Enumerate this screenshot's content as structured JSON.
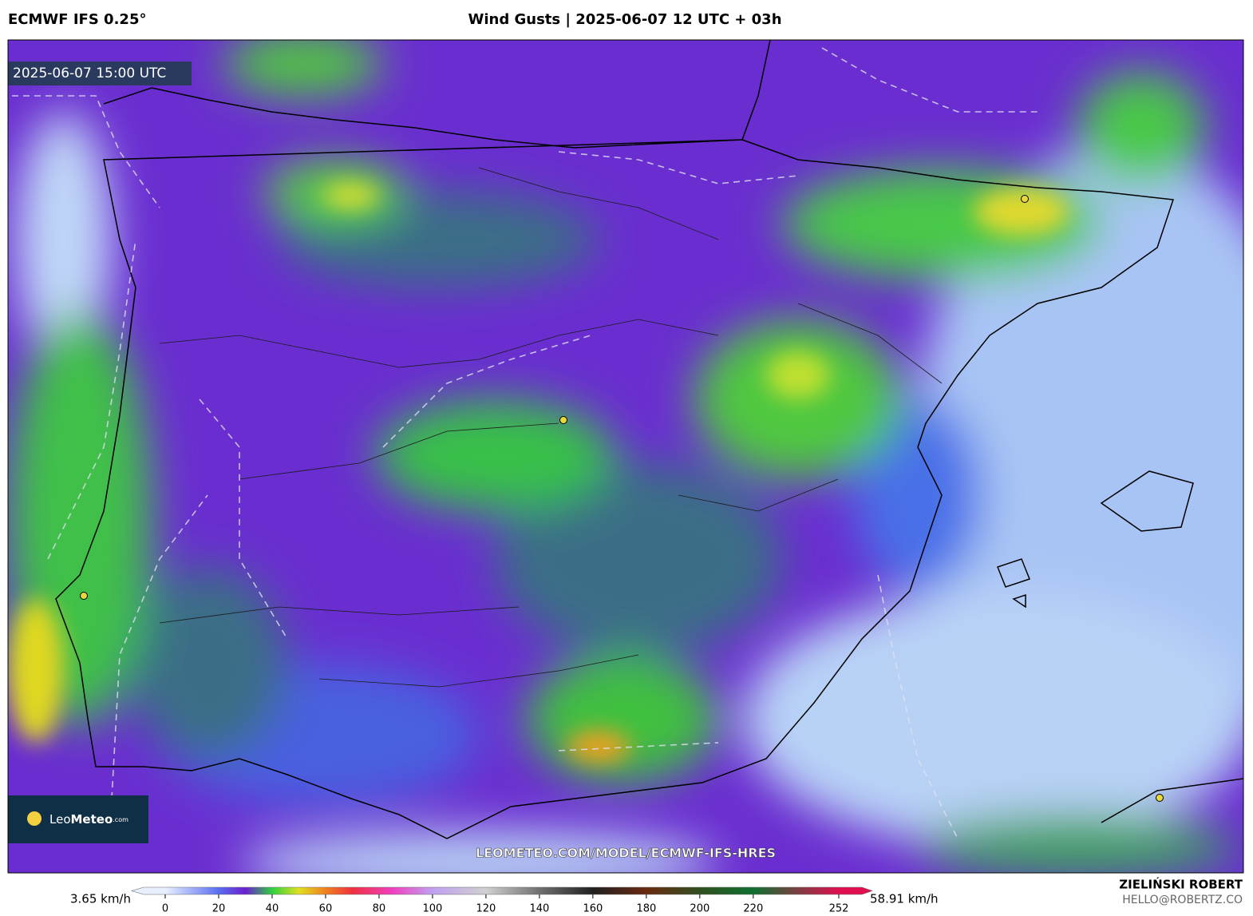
{
  "header": {
    "model": "ECMWF IFS 0.25°",
    "title": "Wind Gusts | 2025-06-07 12 UTC + 03h"
  },
  "map": {
    "valid_time": "2025-06-07 15:00 UTC",
    "watermark": "LEOMETEO.COM/MODEL/ECMWF-IFS-HRES",
    "logo": {
      "name_regular": "Leo",
      "name_bold": "Meteo",
      "suffix": ".com"
    }
  },
  "colorbar": {
    "min_label": "3.65 km/h",
    "max_label": "58.91 km/h",
    "lim": [
      0,
      252
    ],
    "ticks": [
      0,
      20,
      40,
      60,
      80,
      100,
      120,
      140,
      160,
      180,
      200,
      220,
      252
    ],
    "stops": [
      {
        "value": 0,
        "color": "#e8f0ff"
      },
      {
        "value": 20,
        "color": "#5a6ef0"
      },
      {
        "value": 30,
        "color": "#6a20d0"
      },
      {
        "value": 40,
        "color": "#30d040"
      },
      {
        "value": 50,
        "color": "#e0e020"
      },
      {
        "value": 60,
        "color": "#f08020"
      },
      {
        "value": 70,
        "color": "#f03040"
      },
      {
        "value": 85,
        "color": "#f040c0"
      },
      {
        "value": 100,
        "color": "#c0a0f0"
      },
      {
        "value": 120,
        "color": "#d0d0d0"
      },
      {
        "value": 140,
        "color": "#707070"
      },
      {
        "value": 160,
        "color": "#202020"
      },
      {
        "value": 180,
        "color": "#6a2a10"
      },
      {
        "value": 200,
        "color": "#305020"
      },
      {
        "value": 220,
        "color": "#107030"
      },
      {
        "value": 252,
        "color": "#e01050"
      }
    ]
  },
  "credits": {
    "author": "ZIELIŃSKI ROBERT",
    "email": "HELLO@ROBERTZ.CO"
  }
}
